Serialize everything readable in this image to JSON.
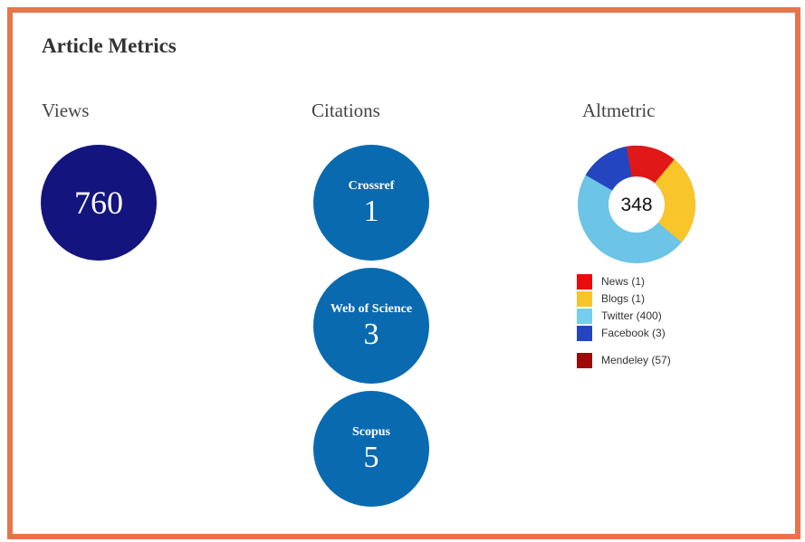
{
  "title": "Article Metrics",
  "views": {
    "heading": "Views",
    "value": "760"
  },
  "citations": {
    "heading": "Citations",
    "items": [
      {
        "label": "Crossref",
        "value": "1"
      },
      {
        "label": "Web of Science",
        "value": "3"
      },
      {
        "label": "Scopus",
        "value": "5"
      }
    ]
  },
  "altmetric": {
    "heading": "Altmetric",
    "score": "348",
    "legend": [
      "News (1)",
      "Blogs (1)",
      "Twitter (400)",
      "Facebook (3)",
      "Mendeley (57)"
    ]
  }
}
